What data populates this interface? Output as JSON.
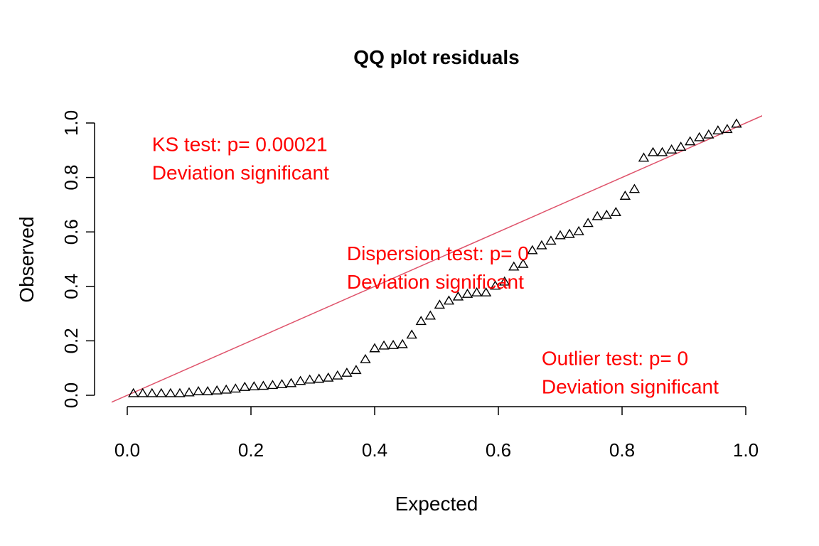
{
  "chart_data": {
    "type": "scatter",
    "title": "QQ plot residuals",
    "xlabel": "Expected",
    "ylabel": "Observed",
    "xlim": [
      0,
      1
    ],
    "ylim": [
      0,
      1
    ],
    "xticks": [
      "0.0",
      "0.2",
      "0.4",
      "0.6",
      "0.8",
      "1.0"
    ],
    "yticks": [
      "0.0",
      "0.2",
      "0.4",
      "0.6",
      "0.8",
      "1.0"
    ],
    "grid": false,
    "marker": "triangle-open",
    "reference_line": {
      "intercept": 0,
      "slope": 1,
      "color": "#DF536B"
    },
    "annotation_color": "#FF0000",
    "annotations": [
      {
        "lines": [
          "KS test: p= 0.00021",
          "Deviation  significant"
        ],
        "x": 0.04,
        "y": 0.92
      },
      {
        "lines": [
          "Dispersion test: p= 0",
          "Deviation  significant"
        ],
        "x": 0.355,
        "y": 0.52
      },
      {
        "lines": [
          "Outlier test: p= 0",
          "Deviation  significant"
        ],
        "x": 0.67,
        "y": 0.135
      }
    ],
    "x": [
      0.01,
      0.025,
      0.04,
      0.055,
      0.07,
      0.085,
      0.1,
      0.115,
      0.13,
      0.145,
      0.16,
      0.175,
      0.19,
      0.205,
      0.22,
      0.235,
      0.25,
      0.265,
      0.28,
      0.295,
      0.31,
      0.325,
      0.34,
      0.355,
      0.37,
      0.385,
      0.4,
      0.415,
      0.43,
      0.445,
      0.46,
      0.475,
      0.49,
      0.505,
      0.52,
      0.535,
      0.55,
      0.565,
      0.58,
      0.595,
      0.61,
      0.625,
      0.64,
      0.655,
      0.67,
      0.685,
      0.7,
      0.715,
      0.73,
      0.745,
      0.76,
      0.775,
      0.79,
      0.805,
      0.82,
      0.835,
      0.85,
      0.865,
      0.88,
      0.895,
      0.91,
      0.925,
      0.94,
      0.955,
      0.97,
      0.985
    ],
    "y": [
      0.005,
      0.005,
      0.005,
      0.005,
      0.005,
      0.005,
      0.008,
      0.012,
      0.012,
      0.015,
      0.018,
      0.022,
      0.028,
      0.03,
      0.032,
      0.035,
      0.038,
      0.042,
      0.05,
      0.055,
      0.058,
      0.062,
      0.07,
      0.08,
      0.09,
      0.13,
      0.17,
      0.18,
      0.182,
      0.185,
      0.22,
      0.27,
      0.29,
      0.33,
      0.345,
      0.36,
      0.37,
      0.375,
      0.375,
      0.4,
      0.415,
      0.47,
      0.48,
      0.53,
      0.548,
      0.565,
      0.585,
      0.59,
      0.6,
      0.63,
      0.655,
      0.66,
      0.67,
      0.73,
      0.755,
      0.87,
      0.89,
      0.89,
      0.9,
      0.91,
      0.93,
      0.945,
      0.955,
      0.97,
      0.975,
      0.995
    ]
  }
}
